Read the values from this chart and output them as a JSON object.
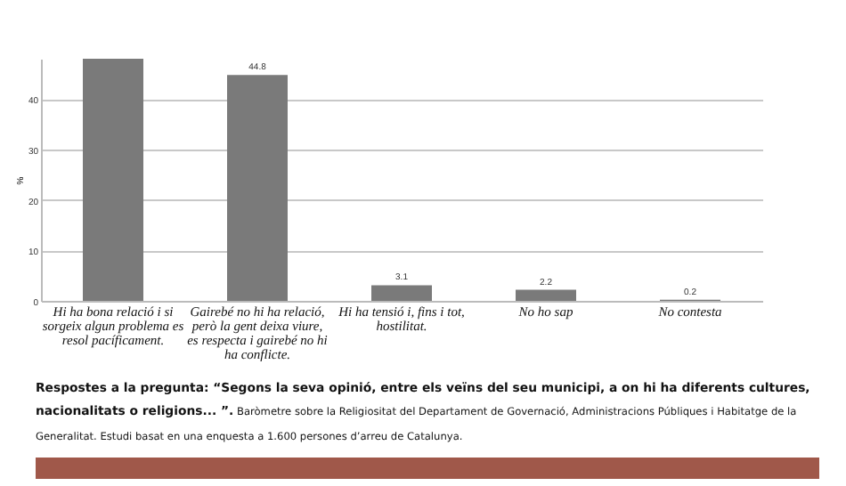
{
  "chart_data": {
    "type": "bar",
    "ylabel": "%",
    "categories": [
      "Hi ha bona relació i si sorgeix algun problema es resol pacíficament.",
      "Gairebé no hi ha relació, però la gent deixa viure, es respecta i gairebé no hi ha conflicte.",
      "Hi ha tensió i, fins i tot, hostilitat.",
      "No ho sap",
      "No contesta"
    ],
    "values": [
      48,
      44.8,
      3.1,
      2.2,
      0.2
    ],
    "value_labels": [
      null,
      "44.8",
      "3.1",
      "2.2",
      "0.2"
    ],
    "color": "#7a7a7a",
    "ylim": [
      0,
      48
    ],
    "yticks": [
      0,
      10,
      20,
      30,
      40
    ],
    "grid": "y",
    "annotations": [
      "Respostes a la pregunta: “Segons la seva opinió, entre els veïns del seu municipi, a on hi ha diferents cultures, nacionalitats o religions... ”.",
      "Baròmetre sobre la Religiositat del Departament de Governació, Administracions Públiques i Habitatge de la Generalitat. Estudi basat en una enquesta a 1.600 persones d’arreu de Catalunya."
    ]
  }
}
